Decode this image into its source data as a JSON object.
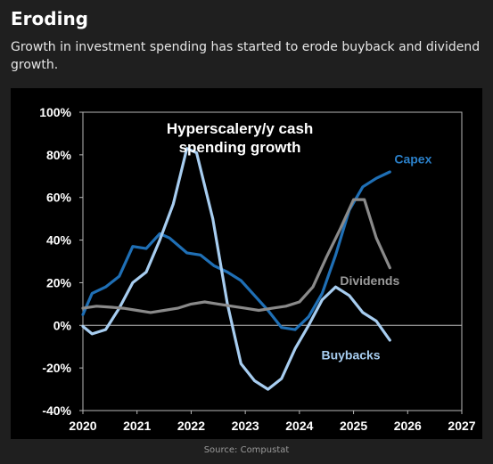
{
  "header": {
    "title": "Eroding",
    "subtitle": "Growth in investment spending has started to erode buyback and dividend growth."
  },
  "footer": {
    "source": "Source: Compustat"
  },
  "chart_data": {
    "type": "line",
    "title": "Hyperscalery/y cash spending growth",
    "title_lines": [
      "Hyperscalery/y cash",
      "spending growth"
    ],
    "xlabel": "",
    "ylabel": "",
    "xlim": [
      2020,
      2027
    ],
    "ylim": [
      -40,
      100
    ],
    "x_ticks": [
      {
        "value": 2020,
        "label": "2020"
      },
      {
        "value": 2021,
        "label": "2021"
      },
      {
        "value": 2022,
        "label": "2022"
      },
      {
        "value": 2023,
        "label": "2023"
      },
      {
        "value": 2024,
        "label": "2024"
      },
      {
        "value": 2025,
        "label": "2025"
      },
      {
        "value": 2026,
        "label": "2026"
      },
      {
        "value": 2027,
        "label": "2027"
      }
    ],
    "y_ticks": [
      {
        "value": -40,
        "label": "-40%"
      },
      {
        "value": -20,
        "label": "-20%"
      },
      {
        "value": 0,
        "label": "0%"
      },
      {
        "value": 20,
        "label": "20%"
      },
      {
        "value": 40,
        "label": "40%"
      },
      {
        "value": 60,
        "label": "60%"
      },
      {
        "value": 80,
        "label": "80%"
      },
      {
        "value": 100,
        "label": "100%"
      }
    ],
    "grid": false,
    "legend": "inline labels",
    "series": [
      {
        "name": "Capex",
        "color": "#1f6fb5",
        "label_color": "#2a7fc8",
        "x": [
          2020.0,
          2020.17,
          2020.42,
          2020.67,
          2020.92,
          2021.17,
          2021.42,
          2021.6,
          2021.92,
          2022.17,
          2022.42,
          2022.67,
          2022.92,
          2023.17,
          2023.42,
          2023.67,
          2023.92,
          2024.17,
          2024.42,
          2024.67,
          2024.92,
          2025.17,
          2025.42,
          2025.67
        ],
        "values": [
          5,
          15,
          18,
          23,
          37,
          36,
          43,
          41,
          34,
          33,
          28,
          25,
          21,
          14,
          7,
          -1,
          -2,
          4,
          15,
          33,
          54,
          65,
          69,
          72
        ]
      },
      {
        "name": "Buybacks",
        "color": "#a7cdf0",
        "label_color": "#a7cdf0",
        "x": [
          2020.0,
          2020.17,
          2020.42,
          2020.67,
          2020.92,
          2021.17,
          2021.42,
          2021.67,
          2021.92,
          2022.1,
          2022.4,
          2022.67,
          2022.92,
          2023.17,
          2023.42,
          2023.67,
          2023.92,
          2024.17,
          2024.42,
          2024.67,
          2024.92,
          2025.17,
          2025.42,
          2025.67
        ],
        "values": [
          -0.5,
          -4,
          -2,
          8,
          20,
          25,
          40,
          57,
          83,
          81,
          50,
          10,
          -18,
          -26,
          -30,
          -25,
          -11,
          0,
          12,
          18,
          14,
          6,
          2,
          -7
        ]
      },
      {
        "name": "Dividends",
        "color": "#8a8a8a",
        "label_color": "#9a9a9a",
        "x": [
          2020.0,
          2020.25,
          2020.5,
          2020.75,
          2021.0,
          2021.25,
          2021.5,
          2021.75,
          2022.0,
          2022.25,
          2022.5,
          2022.75,
          2023.0,
          2023.25,
          2023.5,
          2023.75,
          2024.0,
          2024.25,
          2024.5,
          2024.75,
          2025.0,
          2025.2,
          2025.42,
          2025.67
        ],
        "values": [
          8,
          9,
          8.5,
          8,
          7,
          6,
          7,
          8,
          10,
          11,
          10,
          9,
          8,
          7,
          8,
          9,
          11,
          18,
          32,
          45,
          59,
          59,
          41,
          27
        ]
      }
    ],
    "series_labels": [
      {
        "series": "Capex",
        "text": "Capex",
        "x": 2026.1,
        "y": 76
      },
      {
        "series": "Dividends",
        "text": "Dividends",
        "x": 2025.3,
        "y": 19
      },
      {
        "series": "Buybacks",
        "text": "Buybacks",
        "x": 2024.95,
        "y": -16
      }
    ],
    "title_position": {
      "x": 2022.9,
      "y": 90
    }
  }
}
